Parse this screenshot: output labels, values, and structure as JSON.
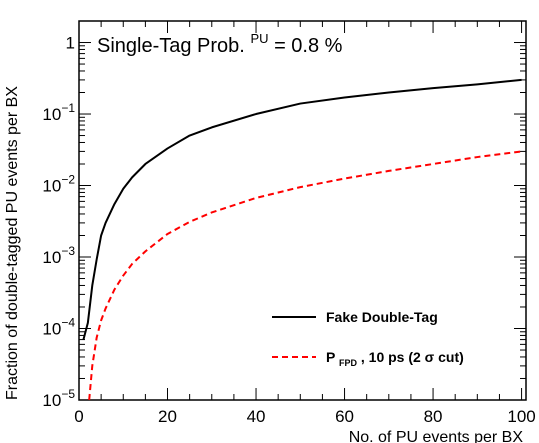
{
  "chart_data": {
    "type": "line",
    "annotation": {
      "prefix": "Single-Tag Prob.",
      "superscript": "PU",
      "suffix": " = 0.8 %"
    },
    "xlabel": "No. of PU events per BX",
    "ylabel": "Fraction of double-tagged PU events per BX",
    "xlim": [
      0,
      101
    ],
    "ylim": [
      1e-05,
      2
    ],
    "yscale": "log",
    "grid": false,
    "legend_position": "bottom-right",
    "x_ticks": [
      {
        "value": 0,
        "label": "0"
      },
      {
        "value": 20,
        "label": "20"
      },
      {
        "value": 40,
        "label": "40"
      },
      {
        "value": 60,
        "label": "60"
      },
      {
        "value": 80,
        "label": "80"
      },
      {
        "value": 100,
        "label": "100"
      }
    ],
    "y_ticks": [
      {
        "value": 1,
        "base": "1",
        "exp": ""
      },
      {
        "value": 0.1,
        "base": "10",
        "exp": "−1"
      },
      {
        "value": 0.01,
        "base": "10",
        "exp": "−2"
      },
      {
        "value": 0.001,
        "base": "10",
        "exp": "−3"
      },
      {
        "value": 0.0001,
        "base": "10",
        "exp": "−4"
      },
      {
        "value": 1e-05,
        "base": "10",
        "exp": "−5"
      }
    ],
    "series": [
      {
        "name": "Fake Double-Tag",
        "name_sub": "",
        "color": "#000000",
        "dash": "solid",
        "x": [
          1,
          2,
          3,
          4,
          5,
          6,
          8,
          10,
          12,
          15,
          20,
          25,
          30,
          40,
          50,
          60,
          70,
          80,
          90,
          100
        ],
        "y": [
          7e-05,
          0.00012,
          0.0004,
          0.00093,
          0.002,
          0.003,
          0.0055,
          0.009,
          0.013,
          0.02,
          0.033,
          0.05,
          0.065,
          0.1,
          0.14,
          0.17,
          0.2,
          0.23,
          0.26,
          0.3
        ]
      },
      {
        "name": ", 10 ps (2 σ cut)",
        "name_prefix": "P",
        "name_sub": "FPD",
        "color": "#ff0000",
        "dash": "dashed",
        "x": [
          2.3,
          3,
          4,
          5,
          6,
          8,
          10,
          12,
          15,
          20,
          25,
          30,
          40,
          50,
          60,
          70,
          80,
          90,
          100
        ],
        "y": [
          1e-05,
          3e-05,
          7.5e-05,
          0.00013,
          0.00019,
          0.00035,
          0.00055,
          0.0008,
          0.0012,
          0.0021,
          0.0031,
          0.0042,
          0.0067,
          0.0095,
          0.0125,
          0.016,
          0.02,
          0.025,
          0.03
        ]
      }
    ]
  }
}
